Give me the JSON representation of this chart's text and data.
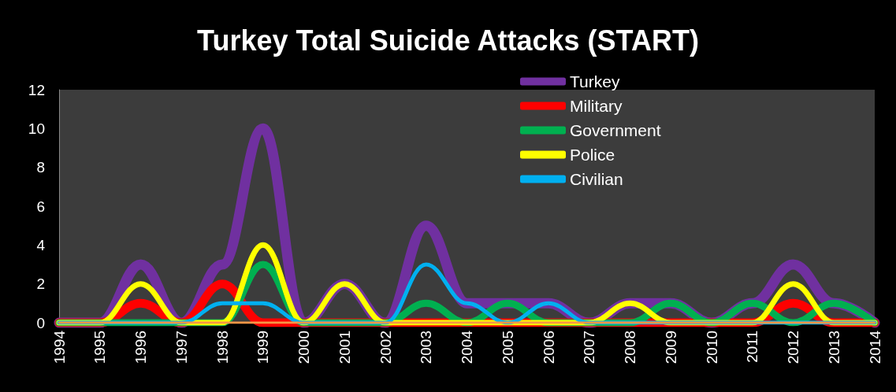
{
  "chart_data": {
    "type": "line",
    "title": "Turkey Total Suicide Attacks (START)",
    "categories": [
      "1994",
      "1995",
      "1996",
      "1997",
      "1998",
      "1999",
      "2000",
      "2001",
      "2002",
      "2003",
      "2004",
      "2005",
      "2006",
      "2007",
      "2008",
      "2009",
      "2010",
      "2011",
      "2012",
      "2013",
      "2014"
    ],
    "series": [
      {
        "name": "Turkey",
        "color": "#7030a0",
        "values": [
          0,
          0,
          3,
          0,
          3,
          10,
          0,
          2,
          0,
          5,
          1,
          1,
          1,
          0,
          1,
          1,
          0,
          1,
          3,
          1,
          0
        ]
      },
      {
        "name": "Military",
        "color": "#ff0000",
        "values": [
          0,
          0,
          1,
          0,
          2,
          0,
          0,
          0,
          0,
          0,
          0,
          0,
          0,
          0,
          0,
          0,
          0,
          0,
          1,
          0,
          0
        ]
      },
      {
        "name": "Government",
        "color": "#00b050",
        "values": [
          0,
          0,
          0,
          0,
          0,
          3,
          0,
          0,
          0,
          1,
          0,
          1,
          0,
          0,
          0,
          1,
          0,
          1,
          0,
          1,
          0
        ]
      },
      {
        "name": "Police",
        "color": "#ffff00",
        "values": [
          0,
          0,
          2,
          0,
          0,
          4,
          0,
          2,
          0,
          0,
          0,
          0,
          0,
          0,
          1,
          0,
          0,
          0,
          2,
          0,
          0
        ]
      },
      {
        "name": "Civilian",
        "color": "#00b0f0",
        "values": [
          0,
          0,
          0,
          0,
          1,
          1,
          0,
          0,
          0,
          3,
          1,
          0,
          1,
          0,
          0,
          0,
          0,
          0,
          0,
          0,
          0
        ]
      },
      {
        "color": "#f79646",
        "values": [
          0,
          0,
          0,
          0,
          0,
          0,
          0,
          0,
          0,
          0,
          0,
          0,
          0,
          0,
          0,
          0,
          0,
          0,
          0,
          0,
          0
        ]
      }
    ],
    "ylim": [
      0,
      12
    ],
    "yticks": [
      0,
      2,
      4,
      6,
      8,
      10,
      12
    ],
    "grid": false,
    "legend": "top right",
    "marker": "none",
    "line_style": "solid"
  }
}
